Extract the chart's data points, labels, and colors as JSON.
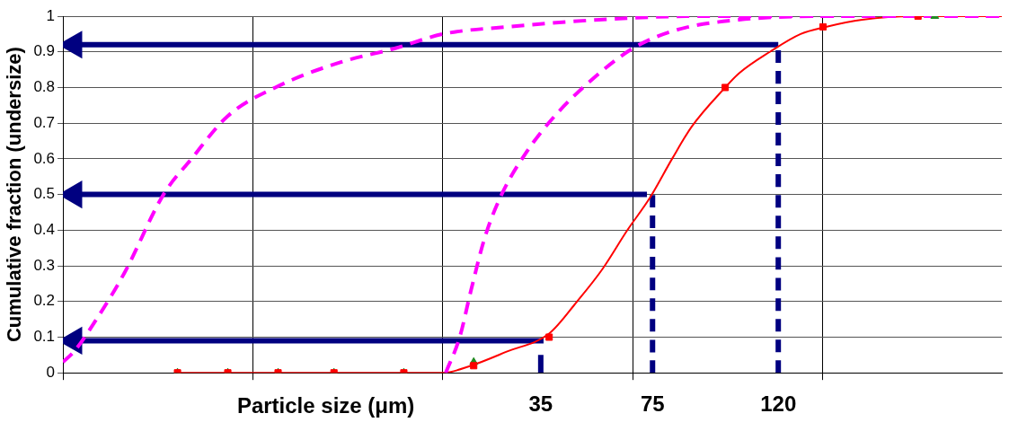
{
  "chart_data": {
    "type": "line",
    "xlabel": "Particle size (μm)",
    "ylabel": "Cumulative fraction (undersize)",
    "xlim": [
      -136,
      200
    ],
    "xticks": [
      {
        "value": -136,
        "label": null
      },
      {
        "value": -68,
        "label": null
      },
      {
        "value": 0,
        "label": null
      },
      35,
      {
        "value": 68,
        "label": null
      },
      75,
      120,
      {
        "value": 136,
        "label": null
      }
    ],
    "ylim": [
      0,
      1
    ],
    "yticks": [
      0,
      0.1,
      0.2,
      0.3,
      0.4,
      0.5,
      0.6,
      0.7,
      0.8,
      0.9,
      1
    ],
    "grid": true,
    "legend": false,
    "marker": "none",
    "series": [
      {
        "type": "line",
        "color": "#ff00ff",
        "line_style": "dashed",
        "x": [
          -136,
          -132,
          -124,
          -114,
          -100,
          -90,
          -77,
          -60,
          -37,
          -17,
          0,
          23,
          56,
          90,
          123,
          200
        ],
        "values": [
          0.03,
          0.06,
          0.15,
          0.28,
          0.5,
          0.6,
          0.72,
          0.8,
          0.87,
          0.91,
          0.95,
          0.97,
          0.99,
          1,
          1,
          1
        ]
      },
      {
        "type": "line",
        "color": "#ff00ff",
        "line_style": "dashed",
        "x": [
          1,
          6,
          10,
          15,
          21,
          30,
          40,
          53,
          68,
          83,
          106,
          140,
          156,
          200
        ],
        "values": [
          0,
          0.1,
          0.23,
          0.38,
          0.5,
          0.62,
          0.72,
          0.82,
          0.91,
          0.96,
          0.99,
          1,
          1,
          1
        ]
      },
      {
        "type": "line",
        "color": "#ff0000",
        "line_style": "solid",
        "x": [
          -95,
          0,
          10,
          23,
          38,
          48,
          57,
          66,
          74,
          82,
          89,
          101,
          106,
          117,
          128,
          137,
          150,
          170,
          200
        ],
        "values": [
          0,
          0,
          0.02,
          0.06,
          0.11,
          0.2,
          0.29,
          0.4,
          0.49,
          0.6,
          0.69,
          0.8,
          0.84,
          0.9,
          0.95,
          0.97,
          0.99,
          1,
          1
        ]
      },
      {
        "type": "scatter",
        "color": "#ff0000",
        "marker": "square",
        "x": [
          -95,
          -77,
          -59,
          -39,
          -14,
          11,
          38,
          101,
          136,
          170
        ],
        "values": [
          0,
          0,
          0,
          0,
          0,
          0.02,
          0.1,
          0.8,
          0.97,
          1
        ]
      },
      {
        "type": "scatter",
        "color": "#228b22",
        "marker": "triangle",
        "x": [
          -95,
          -77,
          -59,
          -39,
          -14,
          11,
          176
        ],
        "values": [
          0,
          0,
          0,
          0,
          0,
          0.03,
          1
        ]
      },
      {
        "type": "line",
        "color": "#000080",
        "line_style": "solid",
        "marker": "triangle",
        "x": [
          -132,
          120
        ],
        "values": [
          0.92,
          0.92
        ]
      },
      {
        "type": "line",
        "color": "#000080",
        "line_style": "solid",
        "marker": "triangle",
        "x": [
          -132,
          73
        ],
        "values": [
          0.5,
          0.5
        ]
      },
      {
        "type": "line",
        "color": "#000080",
        "line_style": "solid",
        "marker": "triangle",
        "x": [
          -132,
          36
        ],
        "values": [
          0.09,
          0.09
        ]
      },
      {
        "type": "line",
        "color": "#000080",
        "line_style": "solid",
        "x": [
          35,
          35
        ],
        "values": [
          0,
          0.05
        ]
      },
      {
        "type": "line",
        "color": "#000080",
        "line_style": "dashed",
        "x": [
          75,
          75
        ],
        "values": [
          0,
          0.5
        ]
      },
      {
        "type": "line",
        "color": "#000080",
        "line_style": "dashed",
        "x": [
          120,
          120
        ],
        "values": [
          0,
          0.92
        ]
      }
    ]
  }
}
